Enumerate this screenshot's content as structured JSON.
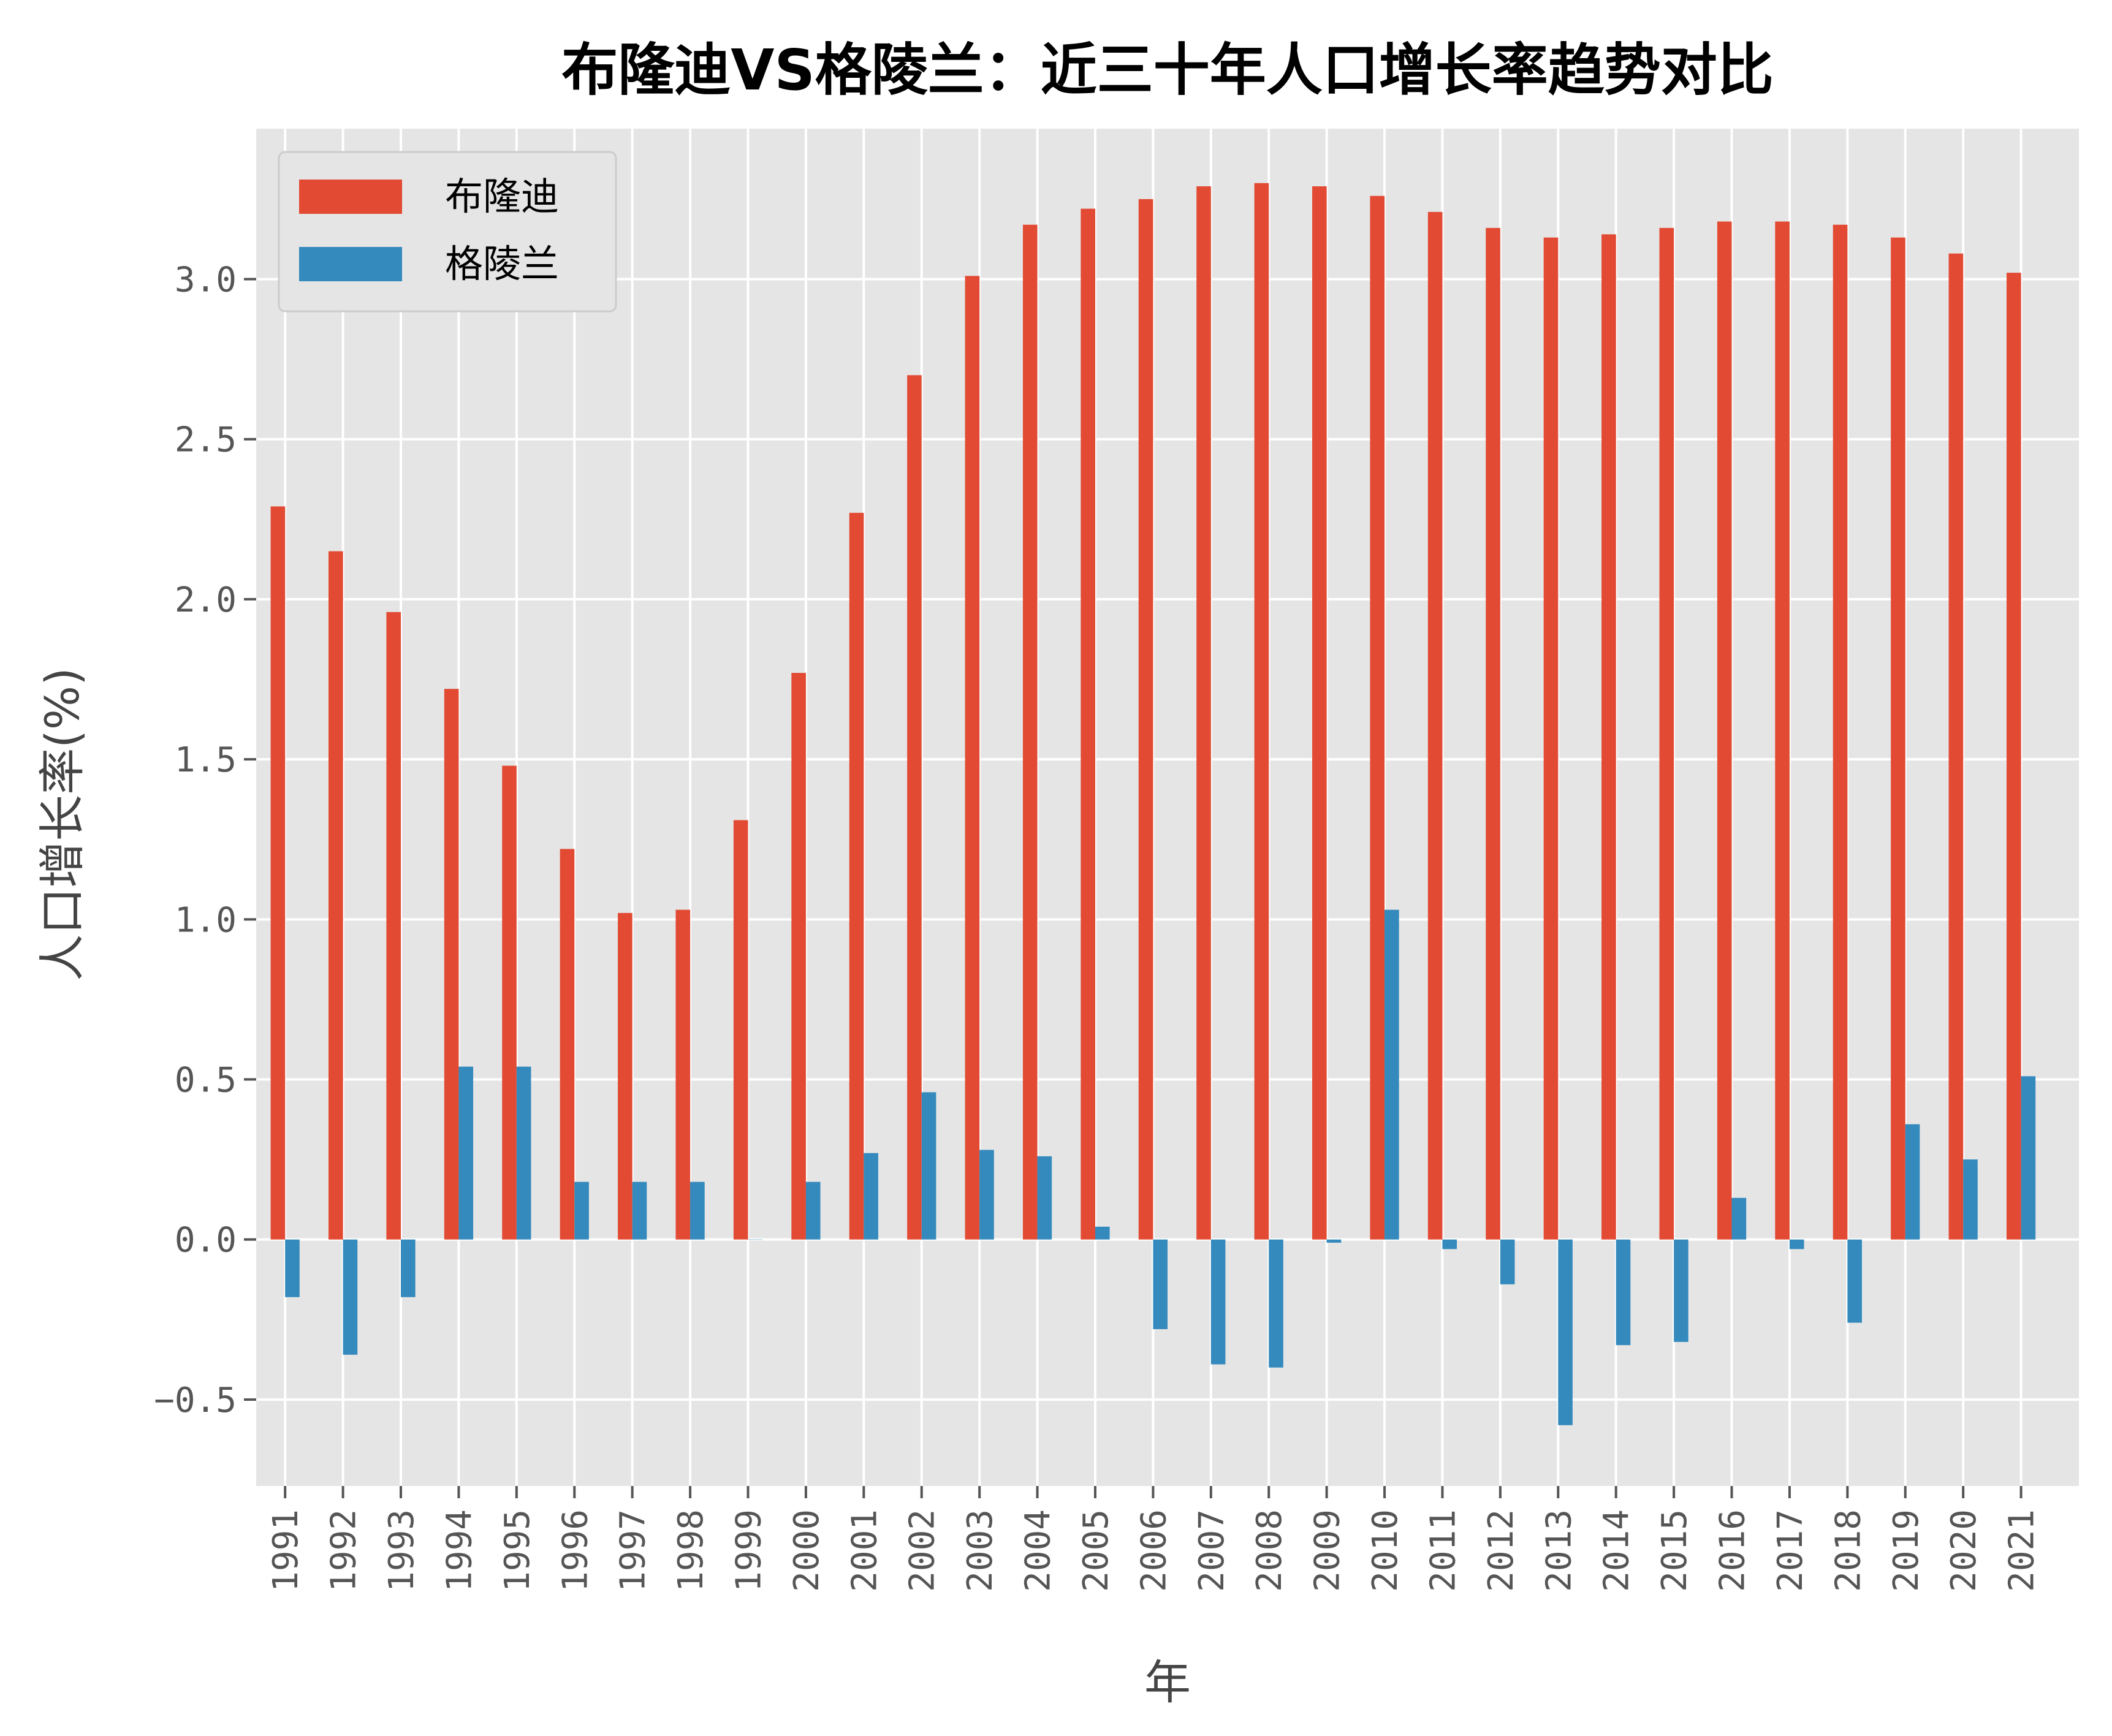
{
  "chart_data": {
    "type": "bar",
    "title": "布隆迪VS格陵兰：近三十年人口增长率趋势对比",
    "xlabel": "年",
    "ylabel": "人口增长率(%)",
    "ylim": [
      -0.77,
      3.47
    ],
    "yticks": [
      "−0.5",
      "0.0",
      "0.5",
      "1.0",
      "1.5",
      "2.0",
      "2.5",
      "3.0"
    ],
    "ytick_values": [
      -0.5,
      0.0,
      0.5,
      1.0,
      1.5,
      2.0,
      2.5,
      3.0
    ],
    "grid": true,
    "legend_position": "top-left",
    "categories": [
      "1991",
      "1992",
      "1993",
      "1994",
      "1995",
      "1996",
      "1997",
      "1998",
      "1999",
      "2000",
      "2001",
      "2002",
      "2003",
      "2004",
      "2005",
      "2006",
      "2007",
      "2008",
      "2009",
      "2010",
      "2011",
      "2012",
      "2013",
      "2014",
      "2015",
      "2016",
      "2017",
      "2018",
      "2019",
      "2020",
      "2021"
    ],
    "series": [
      {
        "name": "布隆迪",
        "color": "#E24A33",
        "values": [
          2.29,
          2.15,
          1.96,
          1.72,
          1.48,
          1.22,
          1.02,
          1.03,
          1.31,
          1.77,
          2.27,
          2.7,
          3.01,
          3.17,
          3.22,
          3.25,
          3.29,
          3.3,
          3.29,
          3.26,
          3.21,
          3.16,
          3.13,
          3.14,
          3.16,
          3.18,
          3.18,
          3.17,
          3.13,
          3.08,
          3.02
        ]
      },
      {
        "name": "格陵兰",
        "color": "#348ABD",
        "values": [
          -0.18,
          -0.36,
          -0.18,
          0.54,
          0.54,
          0.18,
          0.18,
          0.18,
          0.0,
          0.18,
          0.27,
          0.46,
          0.28,
          0.26,
          0.04,
          -0.28,
          -0.39,
          -0.4,
          -0.01,
          1.03,
          -0.03,
          -0.14,
          -0.58,
          -0.33,
          -0.32,
          0.13,
          -0.03,
          -0.26,
          0.36,
          0.25,
          0.51
        ]
      }
    ]
  },
  "colors": {
    "plot_background": "#E5E5E5",
    "grid": "#FFFFFF",
    "tick": "#555555"
  }
}
